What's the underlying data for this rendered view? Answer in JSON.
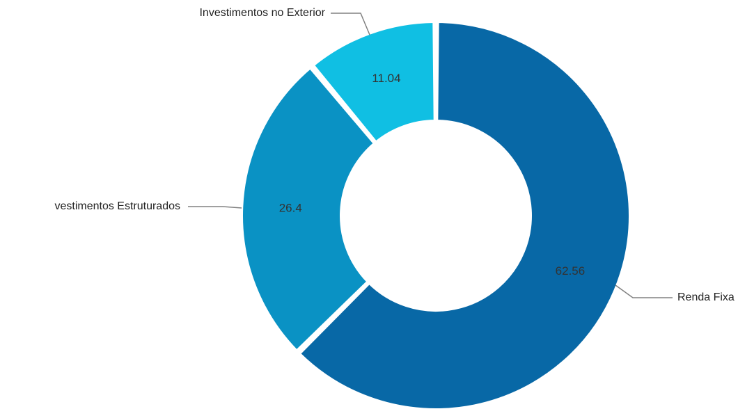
{
  "chart_data": {
    "type": "pie",
    "variant": "donut",
    "start_angle_deg": 0,
    "direction": "clockwise",
    "slices": [
      {
        "name": "Renda Fixa",
        "value": 62.56,
        "display_label": "Renda Fixa",
        "value_label": "62.56",
        "color": "#0868a6"
      },
      {
        "name": "Investimentos Estruturados",
        "value": 26.4,
        "display_label": "vestimentos Estruturados",
        "value_label": "26.4",
        "color": "#0a92c4"
      },
      {
        "name": "Investimentos no Exterior",
        "value": 11.04,
        "display_label": "Investimentos no Exterior",
        "value_label": "11.04",
        "color": "#10bfe3"
      }
    ],
    "legend": "none"
  }
}
